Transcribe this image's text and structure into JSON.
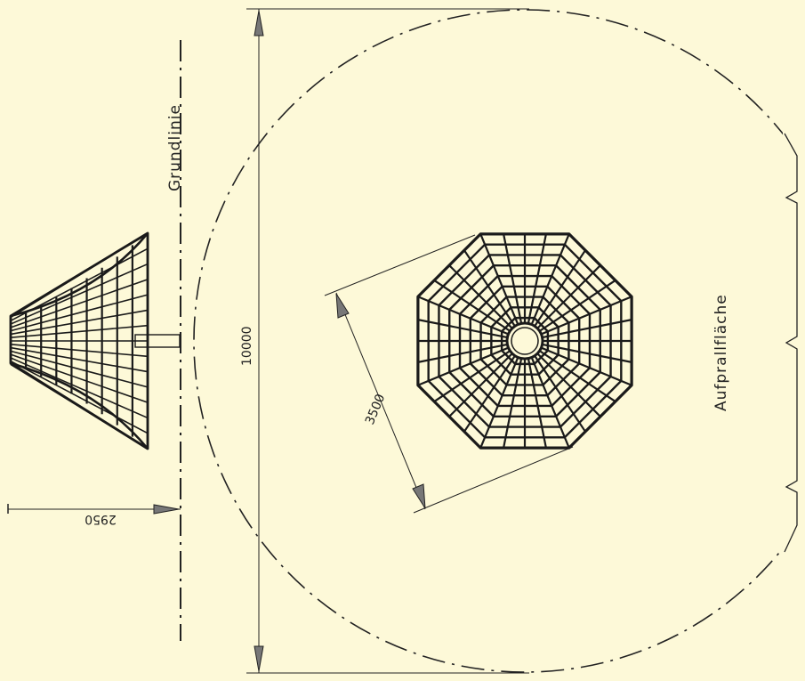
{
  "colors": {
    "background": "#fdf9d8",
    "ink": "#222222",
    "net_ink": "#1a1a1a"
  },
  "labels": {
    "grundlinie": "Grundlinie",
    "aufprallflaeche": "Aufprallfläche",
    "dim_10000": "10000",
    "dim_3500": "3500",
    "dim_2950": "2950"
  }
}
